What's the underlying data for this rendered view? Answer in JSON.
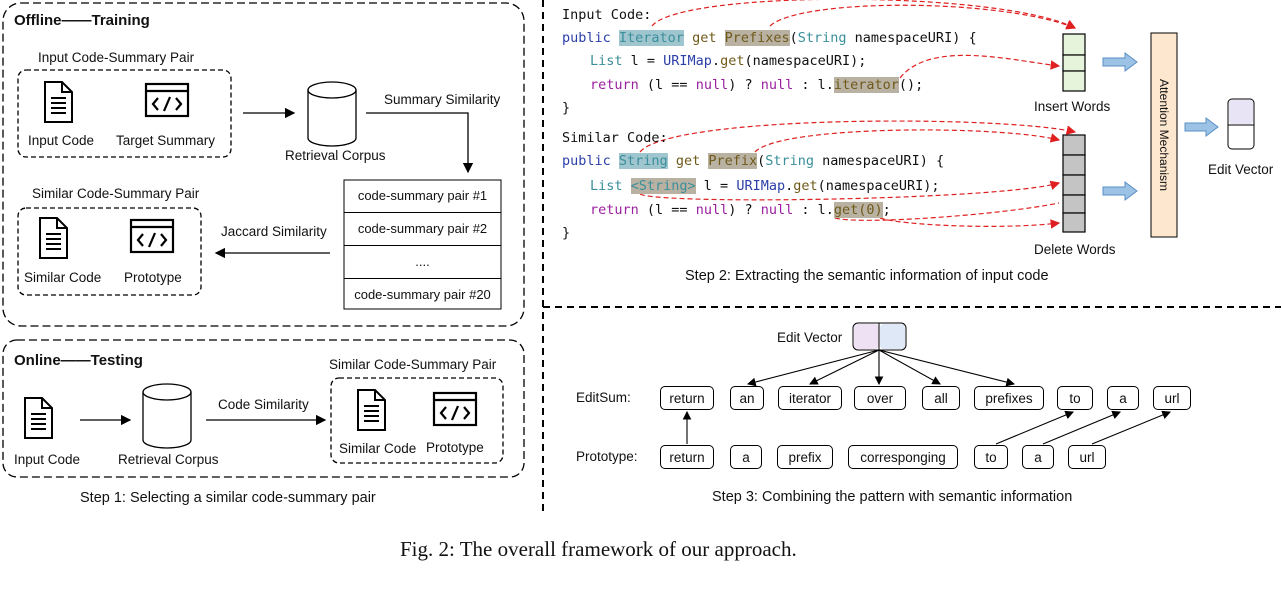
{
  "step1": {
    "offline_title": "Offline——Training",
    "input_pair_label": "Input Code-Summary Pair",
    "input_code": "Input Code",
    "target_summary": "Target Summary",
    "retrieval_corpus": "Retrieval Corpus",
    "summary_similarity": "Summary Similarity",
    "pairs": [
      "code-summary pair #1",
      "code-summary pair #2",
      "....",
      "code-summary pair #20"
    ],
    "jaccard_similarity": "Jaccard Similarity",
    "similar_pair_label": "Similar Code-Summary Pair",
    "similar_code": "Similar Code",
    "prototype": "Prototype",
    "online_title": "Online——Testing",
    "online_input_code": "Input Code",
    "online_retrieval_corpus": "Retrieval Corpus",
    "code_similarity": "Code Similarity",
    "online_similar_pair_label": "Similar Code-Summary Pair",
    "online_similar_code": "Similar Code",
    "online_prototype": "Prototype",
    "caption": "Step 1: Selecting a similar code-summary pair"
  },
  "step2": {
    "input_code_label": "Input Code:",
    "similar_code_label": "Similar Code:",
    "input_line1": {
      "pre": "public ",
      "hl1": "Iterator",
      "mid": " get ",
      "hl2": "Prefixes",
      "post1": "(",
      "str": "String",
      "post2": " namespaceURI) {"
    },
    "input_line2": {
      "pre": "List",
      "mid": " l = ",
      "fn": "URIMap",
      "rest": ".",
      "get": "get",
      "tail": "(namespaceURI);"
    },
    "input_line3": {
      "ret": "return",
      "mid": " (l == ",
      "nul": "null",
      "q": ") ? ",
      "nul2": "null",
      "c": " : l.",
      "hl": "iterator",
      "tail": "();"
    },
    "close1": "}",
    "sim_line1": {
      "pre": "public ",
      "hl1": "String",
      "mid": " get ",
      "hl2": "Prefix",
      "post1": "(",
      "str": "String",
      "post2": " namespaceURI) {"
    },
    "sim_line2": {
      "pre": "List ",
      "hl": "<String>",
      "mid": " l = ",
      "fn": "URIMap",
      "rest": ".",
      "get": "get",
      "tail": "(namespaceURI);"
    },
    "sim_line3": {
      "ret": "return",
      "mid": " (l == ",
      "nul": "null",
      "q": ") ? ",
      "nul2": "null",
      "c": " : l.",
      "hl": "get(0)",
      "tail": ";"
    },
    "close2": "}",
    "insert_words": "Insert Words",
    "delete_words": "Delete Words",
    "attention": "Attention Mechanism",
    "edit_vector": "Edit Vector",
    "caption": "Step 2: Extracting the semantic information of input code"
  },
  "step3": {
    "edit_vector": "Edit Vector",
    "editsum_label": "EditSum:",
    "prototype_label": "Prototype:",
    "editsum_tokens": [
      "return",
      "an",
      "iterator",
      "over",
      "all",
      "prefixes",
      "to",
      "a",
      "url"
    ],
    "prototype_tokens": [
      "return",
      "a",
      "prefix",
      "corresponging",
      "to",
      "a",
      "url"
    ],
    "caption": "Step 3: Combining the pattern with semantic information"
  },
  "figure_caption": "Fig. 2: The overall framework of our approach."
}
